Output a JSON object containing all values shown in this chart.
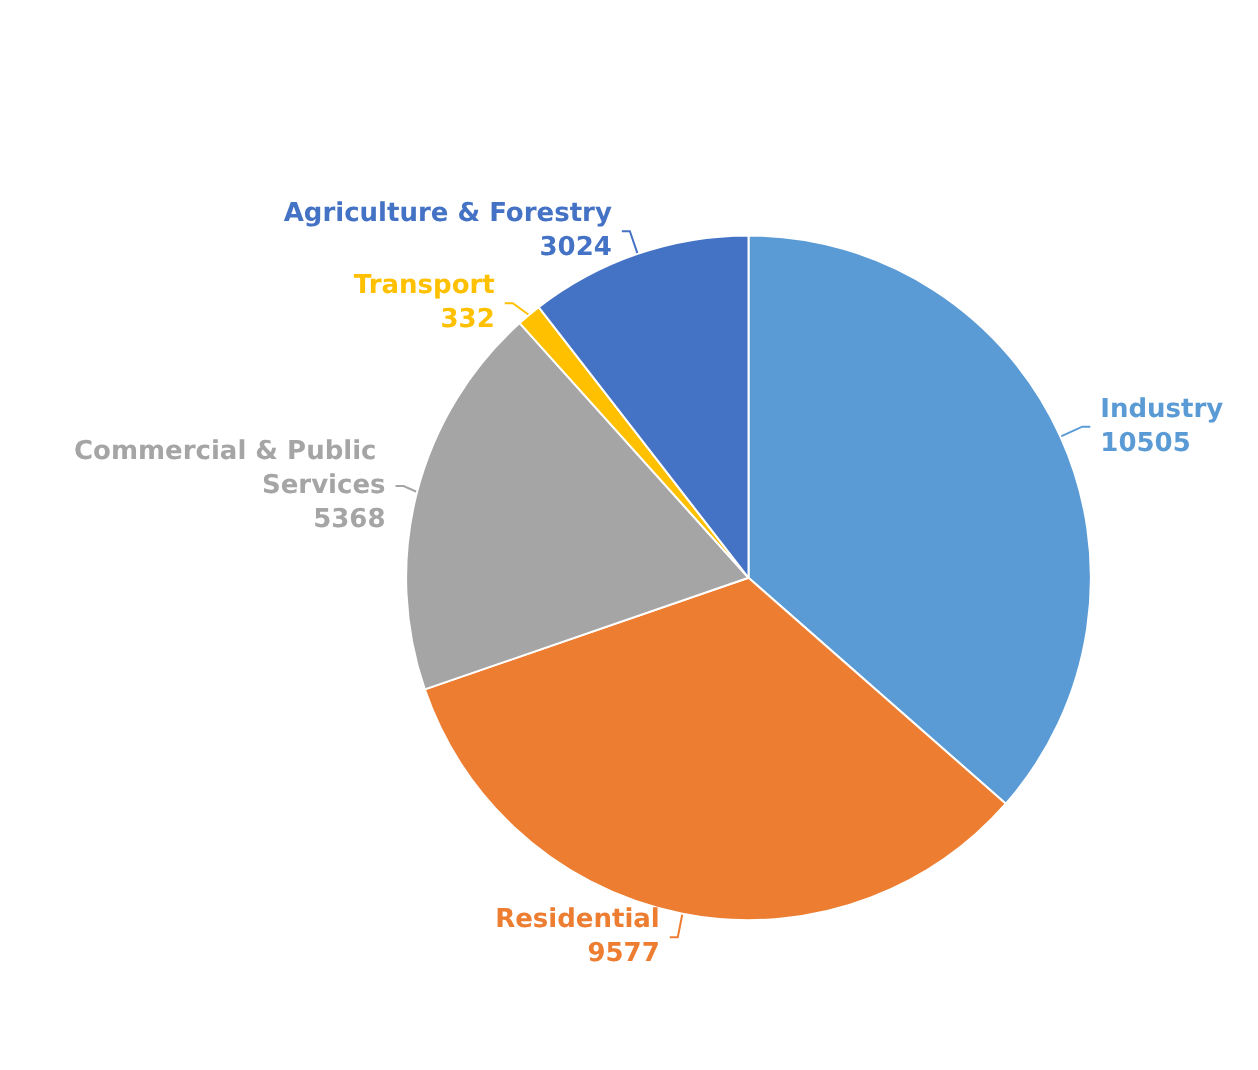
{
  "chart_data": {
    "type": "pie",
    "categories": [
      "Industry",
      "Residential",
      "Commercial & Public Services",
      "Transport",
      "Agriculture & Forestry"
    ],
    "values": [
      10505,
      9577,
      5368,
      332,
      3024
    ],
    "colors": [
      "#5b9bd5",
      "#ed7d31",
      "#a5a5a5",
      "#ffc000",
      "#4472c4"
    ],
    "data_labels": true,
    "legend": false
  }
}
